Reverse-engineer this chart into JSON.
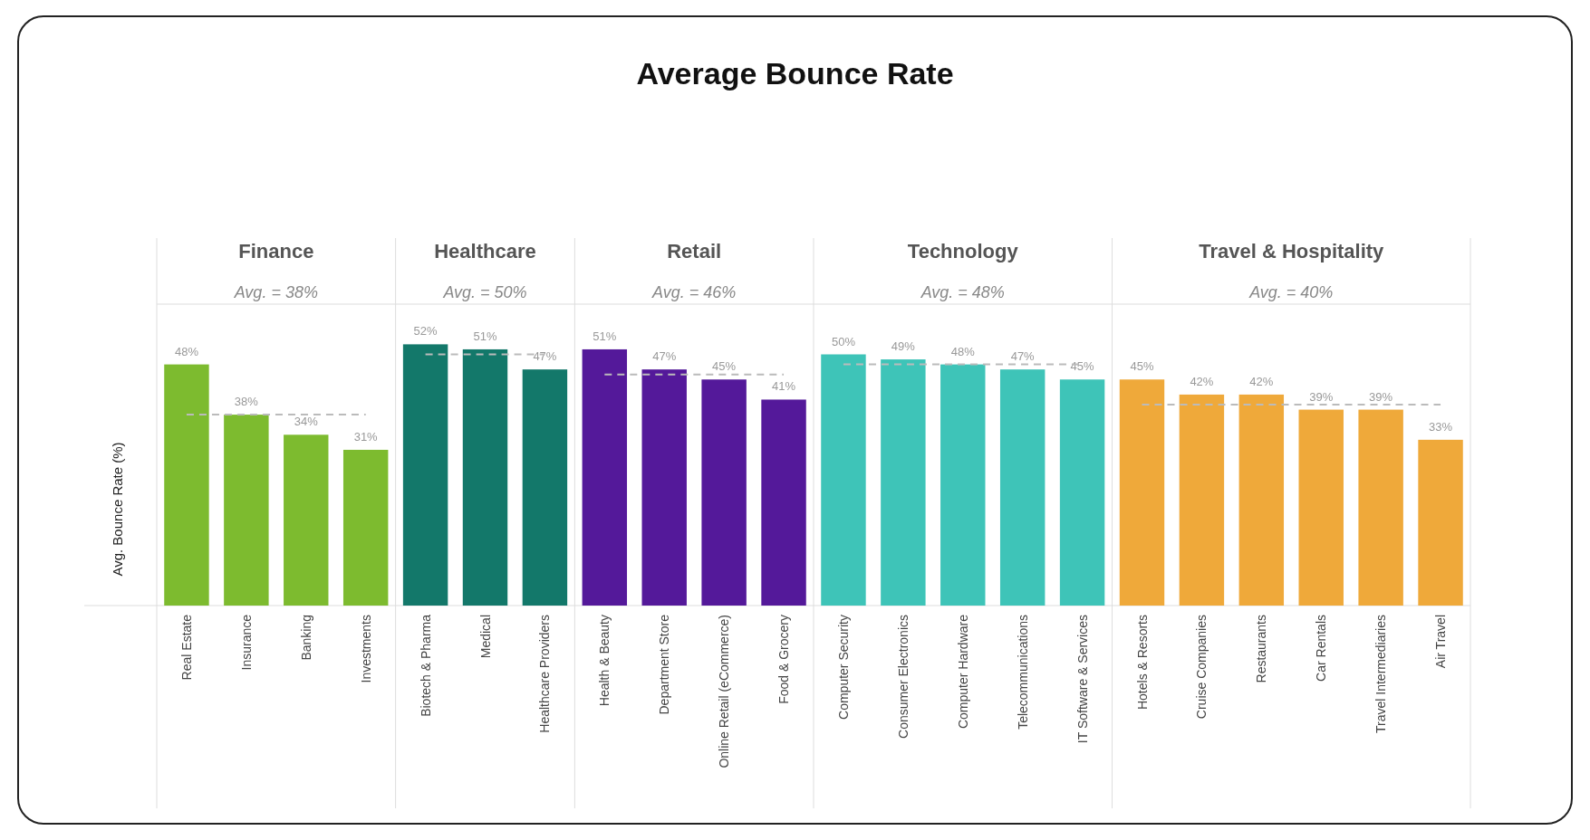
{
  "chart_data": {
    "type": "bar",
    "title": "Average Bounce Rate",
    "ylabel": "Avg. Bounce Rate (%)",
    "ylim": [
      0,
      60
    ],
    "tick_labels": "x",
    "categories": [
      "Real Estate",
      "Insurance",
      "Banking",
      "Investments",
      "Biotech & Pharma",
      "Medical",
      "Healthcare Providers",
      "Health & Beauty",
      "Department Store",
      "Online Retail (eCommerce)",
      "Food & Grocery",
      "Computer Security",
      "Consumer Electronics",
      "Computer Hardware",
      "Telecommunications",
      "IT Software & Services",
      "Hotels & Resorts",
      "Cruise Companies",
      "Restaurants",
      "Car Rentals",
      "Travel Intermediaries",
      "Air Travel"
    ],
    "annotations": [
      "Finance",
      "Avg. = 38%",
      "Healthcare",
      "Avg. = 50%",
      "Retail",
      "Avg. = 46%",
      "Technology",
      "Avg. = 48%",
      "Travel & Hospitality",
      "Avg. = 40%"
    ],
    "series": [
      {
        "color": "#7dbb2f",
        "values": [
          48,
          38,
          34,
          31,
          null,
          null,
          null,
          null,
          null,
          null,
          null,
          null,
          null,
          null,
          null,
          null,
          null,
          null,
          null,
          null,
          null,
          null
        ],
        "value_labels": [
          "48%",
          "38%",
          "34%",
          "31%",
          null,
          null,
          null,
          null,
          null,
          null,
          null,
          null,
          null,
          null,
          null,
          null,
          null,
          null,
          null,
          null,
          null,
          null
        ]
      },
      {
        "color": "#13786a",
        "values": [
          null,
          null,
          null,
          null,
          52,
          51,
          47,
          null,
          null,
          null,
          null,
          null,
          null,
          null,
          null,
          null,
          null,
          null,
          null,
          null,
          null,
          null
        ],
        "value_labels": [
          null,
          null,
          null,
          null,
          "52%",
          "51%",
          "47%",
          null,
          null,
          null,
          null,
          null,
          null,
          null,
          null,
          null,
          null,
          null,
          null,
          null,
          null,
          null
        ]
      },
      {
        "color": "#54199a",
        "values": [
          null,
          null,
          null,
          null,
          null,
          null,
          null,
          51,
          47,
          45,
          41,
          null,
          null,
          null,
          null,
          null,
          null,
          null,
          null,
          null,
          null,
          null
        ],
        "value_labels": [
          null,
          null,
          null,
          null,
          null,
          null,
          null,
          "51%",
          "47%",
          "45%",
          "41%",
          null,
          null,
          null,
          null,
          null,
          null,
          null,
          null,
          null,
          null,
          null
        ]
      },
      {
        "color": "#3ec4b8",
        "values": [
          null,
          null,
          null,
          null,
          null,
          null,
          null,
          null,
          null,
          null,
          null,
          50,
          49,
          48,
          47,
          45,
          null,
          null,
          null,
          null,
          null,
          null
        ],
        "value_labels": [
          null,
          null,
          null,
          null,
          null,
          null,
          null,
          null,
          null,
          null,
          null,
          "50%",
          "49%",
          "48%",
          "47%",
          "45%",
          null,
          null,
          null,
          null,
          null,
          null
        ]
      },
      {
        "color": "#efa93a",
        "values": [
          null,
          null,
          null,
          null,
          null,
          null,
          null,
          null,
          null,
          null,
          null,
          null,
          null,
          null,
          null,
          null,
          45,
          42,
          42,
          39,
          39,
          33
        ],
        "value_labels": [
          null,
          null,
          null,
          null,
          null,
          null,
          null,
          null,
          null,
          null,
          null,
          null,
          null,
          null,
          null,
          null,
          "45%",
          "42%",
          "42%",
          "39%",
          "39%",
          "33%"
        ]
      },
      {
        "type": "line",
        "color": "#bbbbbb",
        "line_style": "dashed",
        "values": [
          38,
          38,
          38,
          38,
          null,
          null,
          null,
          null,
          null,
          null,
          null,
          null,
          null,
          null,
          null,
          null,
          null,
          null,
          null,
          null,
          null,
          null
        ]
      },
      {
        "type": "line",
        "color": "#bbbbbb",
        "line_style": "dashed",
        "values": [
          null,
          null,
          null,
          null,
          50,
          50,
          50,
          null,
          null,
          null,
          null,
          null,
          null,
          null,
          null,
          null,
          null,
          null,
          null,
          null,
          null,
          null
        ]
      },
      {
        "type": "line",
        "color": "#bbbbbb",
        "line_style": "dashed",
        "values": [
          null,
          null,
          null,
          null,
          null,
          null,
          null,
          46,
          46,
          46,
          46,
          null,
          null,
          null,
          null,
          null,
          null,
          null,
          null,
          null,
          null,
          null
        ]
      },
      {
        "type": "line",
        "color": "#bbbbbb",
        "line_style": "dashed",
        "values": [
          null,
          null,
          null,
          null,
          null,
          null,
          null,
          null,
          null,
          null,
          null,
          48,
          48,
          48,
          48,
          48,
          null,
          null,
          null,
          null,
          null,
          null
        ]
      },
      {
        "type": "line",
        "color": "#bbbbbb",
        "line_style": "dashed",
        "values": [
          null,
          null,
          null,
          null,
          null,
          null,
          null,
          null,
          null,
          null,
          null,
          null,
          null,
          null,
          null,
          null,
          40,
          40,
          40,
          40,
          40,
          40
        ]
      }
    ]
  }
}
